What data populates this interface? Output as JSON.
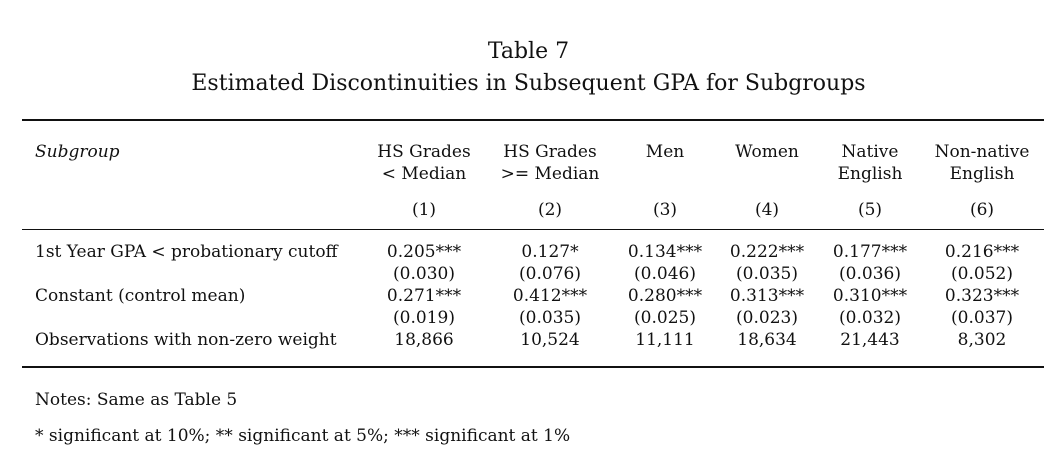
{
  "table": {
    "number": "Table 7",
    "caption": "Estimated Discontinuities in Subsequent GPA for Subgroups",
    "stub_header": "Subgroup",
    "columns": [
      {
        "line1": "HS Grades",
        "line2": "< Median",
        "num": "(1)"
      },
      {
        "line1": "HS Grades",
        "line2": ">= Median",
        "num": "(2)"
      },
      {
        "line1": "Men",
        "line2": "",
        "num": "(3)"
      },
      {
        "line1": "Women",
        "line2": "",
        "num": "(4)"
      },
      {
        "line1": "Native",
        "line2": "English",
        "num": "(5)"
      },
      {
        "line1": "Non-native",
        "line2": "English",
        "num": "(6)"
      }
    ],
    "rows": [
      {
        "label": "1st Year GPA < probationary cutoff",
        "values": [
          "0.205***",
          "0.127*",
          "0.134***",
          "0.222***",
          "0.177***",
          "0.216***"
        ],
        "se": [
          "(0.030)",
          "(0.076)",
          "(0.046)",
          "(0.035)",
          "(0.036)",
          "(0.052)"
        ]
      },
      {
        "label": "Constant (control mean)",
        "values": [
          "0.271***",
          "0.412***",
          "0.280***",
          "0.313***",
          "0.310***",
          "0.323***"
        ],
        "se": [
          "(0.019)",
          "(0.035)",
          "(0.025)",
          "(0.023)",
          "(0.032)",
          "(0.037)"
        ]
      },
      {
        "label": "Observations with non-zero weight",
        "values": [
          "18,866",
          "10,524",
          "11,111",
          "18,634",
          "21,443",
          "8,302"
        ],
        "se": []
      }
    ],
    "notes": [
      "Notes: Same as Table 5",
      "* significant at 10%; ** significant at 5%; *** significant at 1%"
    ]
  }
}
